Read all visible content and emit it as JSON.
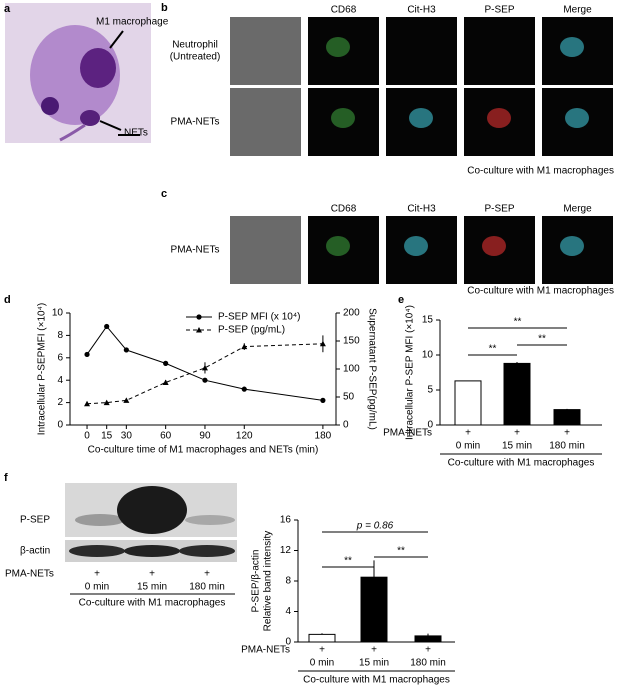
{
  "figure": {
    "a": {
      "letter": "a",
      "labels": [
        "M1 macrophage",
        "NETs"
      ]
    },
    "b": {
      "letter": "b",
      "columns": [
        "CD68",
        "Cit-H3",
        "P-SEP",
        "Merge"
      ],
      "rows": [
        [
          "Neutrophil",
          "(Untreated)"
        ],
        [
          "PMA-NETs"
        ]
      ],
      "caption": "Co-culture with M1 macrophages"
    },
    "c": {
      "letter": "c",
      "columns": [
        "CD68",
        "Cit-H3",
        "P-SEP",
        "Merge"
      ],
      "rows": [
        [
          "PMA-NETs"
        ]
      ],
      "caption": "Co-culture with M1 macrophages"
    },
    "f": {
      "letter": "f",
      "bands": [
        "P-SEP",
        "β-actin"
      ],
      "treatment": {
        "label": "PMA-NETs",
        "values": [
          "+",
          "+",
          "+"
        ]
      },
      "lanes": [
        "0 min",
        "15 min",
        "180 min"
      ],
      "caption": "Co-culture with M1 macrophages"
    }
  },
  "chart_data": [
    {
      "type": "line",
      "letter": "d",
      "x_label": "Co-culture time of M1 macrophages and NETs (min)",
      "y_label": "Intracellular P-SEPMFI (×10⁴)",
      "y2_label": "Supernatant P-SEP(pg/mL)",
      "x": [
        0,
        15,
        30,
        60,
        90,
        120,
        180
      ],
      "xlim": [
        -13,
        190
      ],
      "xticks": [
        0,
        15,
        30,
        60,
        90,
        120,
        180
      ],
      "ylim": [
        0,
        10
      ],
      "yticks": [
        0,
        2,
        4,
        6,
        8,
        10
      ],
      "y2lim": [
        0,
        200
      ],
      "y2ticks": [
        0,
        50,
        100,
        150,
        200
      ],
      "legend": "top-right",
      "series": [
        {
          "name": "P-SEP MFI (x 10⁴)",
          "color": "#000000",
          "line_style": "solid",
          "marker": "circle",
          "axis": "y",
          "values": [
            6.3,
            8.8,
            6.7,
            5.5,
            4.0,
            3.2,
            2.2
          ],
          "errors": [
            0.05,
            0.2,
            0.2,
            0.05,
            0.05,
            0.05,
            0.05
          ]
        },
        {
          "name": "P-SEP (pg/mL)",
          "color": "#000000",
          "line_style": "dashed",
          "marker": "triangle",
          "axis": "y2",
          "values": [
            38,
            40,
            44,
            76,
            102,
            140,
            145
          ],
          "errors": [
            4,
            3,
            2,
            4,
            10,
            6,
            15
          ]
        }
      ]
    },
    {
      "type": "bar",
      "letter": "e",
      "y_label": [
        "Intracellular P-SEP MFI (×10⁴)"
      ],
      "categories": [
        "0 min",
        "15 min",
        "180 min"
      ],
      "treatment": {
        "label": "PMA-NETs",
        "values": [
          "+",
          "+",
          "+"
        ]
      },
      "group_label": "Co-culture with M1 macrophages",
      "ylim": [
        0,
        15
      ],
      "yticks": [
        0,
        5,
        10,
        15
      ],
      "values": [
        6.3,
        8.8,
        2.2
      ],
      "errors": [
        0.05,
        0.2,
        0.1
      ],
      "colors": [
        "#ffffff",
        "#000000",
        "#000000"
      ],
      "annotations": [
        "**",
        "**",
        "**"
      ]
    },
    {
      "type": "bar",
      "letter": "f",
      "y_label": [
        "Relative band intensity",
        "P-SEP/β-actin"
      ],
      "categories": [
        "0 min",
        "15 min",
        "180 min"
      ],
      "treatment": {
        "label": "PMA-NETs",
        "values": [
          "+",
          "+",
          "+"
        ]
      },
      "group_label": "Co-culture with M1 macrophages",
      "ylim": [
        0,
        16
      ],
      "yticks": [
        0,
        4,
        8,
        12,
        16
      ],
      "values": [
        1.0,
        8.5,
        0.8
      ],
      "errors": [
        0.15,
        2.2,
        0.3
      ],
      "colors": [
        "#ffffff",
        "#000000",
        "#000000"
      ],
      "annotations": [
        "p = 0.86",
        "**",
        "**"
      ]
    }
  ]
}
